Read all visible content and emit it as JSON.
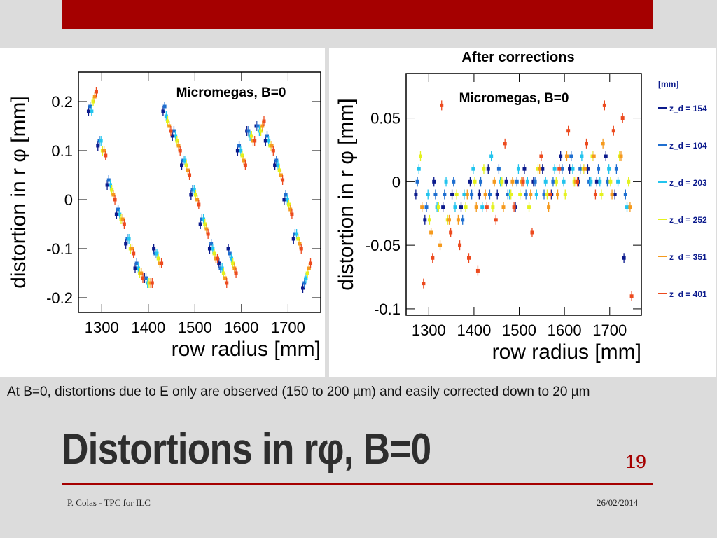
{
  "slide": {
    "title": "Distortions in rφ, B=0",
    "number": "19",
    "caption": "At B=0, distortions due to E only are observed (150 to 200 µm) and easily corrected down to 20 µm",
    "footer_left": "P. Colas - TPC for ILC",
    "footer_right": "26/02/2014",
    "accent_color": "#a50000"
  },
  "chart_data": [
    {
      "type": "scatter",
      "title": "",
      "annotation": "Micromegas, B=0",
      "xlabel": "row radius [mm]",
      "ylabel": "distortion in r φ [mm]",
      "xlim": [
        1250,
        1770
      ],
      "ylim": [
        -0.23,
        0.26
      ],
      "xticks": [
        1300,
        1400,
        1500,
        1600,
        1700
      ],
      "yticks": [
        0.2,
        0.1,
        0,
        -0.1,
        -0.2
      ],
      "ytick_labels": [
        "0.2",
        "0.1",
        "0",
        "-0.1",
        "-0.2"
      ],
      "error_bars": true,
      "series": [
        {
          "name": "z_d = 154",
          "color": "#0b1a8c",
          "x": [
            1280,
            1300,
            1320,
            1340,
            1360,
            1380,
            1400,
            1420,
            1440,
            1460,
            1480,
            1500,
            1520,
            1540,
            1560,
            1580,
            1600,
            1620,
            1640,
            1660,
            1680,
            1700,
            1720,
            1740
          ],
          "y": [
            0.18,
            0.11,
            0.03,
            -0.03,
            -0.09,
            -0.14,
            -0.16,
            -0.1,
            0.18,
            0.13,
            0.07,
            0.01,
            -0.05,
            -0.1,
            -0.13,
            -0.1,
            0.1,
            0.14,
            0.15,
            0.12,
            0.07,
            0.0,
            -0.08,
            -0.18
          ]
        },
        {
          "name": "z_d = 104",
          "color": "#1f6fd0",
          "x": [
            1280,
            1300,
            1320,
            1340,
            1360,
            1380,
            1400,
            1420,
            1440,
            1460,
            1480,
            1500,
            1520,
            1540,
            1560,
            1580,
            1600,
            1620,
            1640,
            1660,
            1680,
            1700,
            1720,
            1740
          ],
          "y": [
            0.19,
            0.12,
            0.04,
            -0.02,
            -0.08,
            -0.13,
            -0.16,
            -0.11,
            0.19,
            0.14,
            0.08,
            0.02,
            -0.04,
            -0.09,
            -0.14,
            -0.11,
            0.11,
            0.14,
            0.15,
            0.13,
            0.08,
            0.01,
            -0.07,
            -0.17
          ]
        },
        {
          "name": "z_d = 203",
          "color": "#22c4ee",
          "x": [
            1280,
            1300,
            1320,
            1340,
            1360,
            1380,
            1400,
            1420,
            1440,
            1460,
            1480,
            1500,
            1520,
            1540,
            1560,
            1580,
            1600,
            1620,
            1640,
            1660,
            1680,
            1700,
            1720,
            1740
          ],
          "y": [
            0.18,
            0.12,
            0.03,
            -0.03,
            -0.08,
            -0.14,
            -0.17,
            -0.11,
            0.17,
            0.13,
            0.08,
            0.02,
            -0.04,
            -0.1,
            -0.14,
            -0.12,
            0.1,
            0.13,
            0.14,
            0.12,
            0.07,
            0.0,
            -0.07,
            -0.16
          ]
        },
        {
          "name": "z_d = 252",
          "color": "#e4f21e",
          "x": [
            1280,
            1300,
            1320,
            1340,
            1360,
            1380,
            1400,
            1420,
            1440,
            1460,
            1480,
            1500,
            1520,
            1540,
            1560,
            1580,
            1600,
            1620,
            1640,
            1660,
            1680,
            1700,
            1720,
            1740
          ],
          "y": [
            0.2,
            0.1,
            0.02,
            -0.04,
            -0.1,
            -0.15,
            -0.17,
            -0.12,
            0.16,
            0.12,
            0.07,
            0.01,
            -0.05,
            -0.11,
            -0.15,
            -0.13,
            0.09,
            0.13,
            0.14,
            0.11,
            0.06,
            -0.01,
            -0.08,
            -0.15
          ]
        },
        {
          "name": "z_d = 351",
          "color": "#f59a1e",
          "x": [
            1280,
            1300,
            1320,
            1340,
            1360,
            1380,
            1400,
            1420,
            1440,
            1460,
            1480,
            1500,
            1520,
            1540,
            1560,
            1580,
            1600,
            1620,
            1640,
            1660,
            1680,
            1700,
            1720,
            1740
          ],
          "y": [
            0.21,
            0.1,
            0.01,
            -0.04,
            -0.1,
            -0.15,
            -0.17,
            -0.13,
            0.15,
            0.11,
            0.06,
            0.0,
            -0.06,
            -0.12,
            -0.16,
            -0.14,
            0.08,
            0.12,
            0.15,
            0.11,
            0.05,
            -0.02,
            -0.09,
            -0.14
          ]
        },
        {
          "name": "z_d = 401",
          "color": "#ec4a1e",
          "x": [
            1280,
            1300,
            1320,
            1340,
            1360,
            1380,
            1400,
            1420,
            1440,
            1460,
            1480,
            1500,
            1520,
            1540,
            1560,
            1580,
            1600,
            1620,
            1640,
            1660,
            1680,
            1700,
            1720,
            1740
          ],
          "y": [
            0.22,
            0.09,
            0.0,
            -0.05,
            -0.11,
            -0.16,
            -0.17,
            -0.13,
            0.14,
            0.1,
            0.05,
            -0.01,
            -0.07,
            -0.12,
            -0.17,
            -0.15,
            0.07,
            0.12,
            0.16,
            0.1,
            0.04,
            -0.03,
            -0.1,
            -0.13
          ]
        }
      ]
    },
    {
      "type": "scatter",
      "title": "After corrections",
      "annotation": "Micromegas, B=0",
      "xlabel": "row radius [mm]",
      "ylabel": "distortion in r φ [mm]",
      "xlim": [
        1250,
        1770
      ],
      "ylim": [
        -0.105,
        0.085
      ],
      "xticks": [
        1300,
        1400,
        1500,
        1600,
        1700
      ],
      "yticks": [
        0.05,
        0,
        -0.05,
        -0.1
      ],
      "ytick_labels": [
        "0.05",
        "0",
        "-0.05",
        "-0.1"
      ],
      "error_bars": true,
      "legend_position": "right",
      "legend_header": "[mm]",
      "series": [
        {
          "name": "z_d = 154",
          "color": "#0b1a8c",
          "x": [
            1280,
            1300,
            1320,
            1340,
            1360,
            1380,
            1400,
            1420,
            1440,
            1460,
            1480,
            1500,
            1520,
            1540,
            1560,
            1580,
            1600,
            1620,
            1640,
            1660,
            1680,
            1700,
            1720,
            1740
          ],
          "y": [
            -0.01,
            -0.03,
            0.0,
            -0.02,
            -0.01,
            -0.02,
            0.0,
            -0.01,
            0.01,
            -0.01,
            0.0,
            -0.02,
            0.01,
            0.0,
            0.01,
            -0.01,
            0.02,
            0.01,
            0.0,
            0.01,
            0.0,
            0.02,
            -0.01,
            -0.06
          ]
        },
        {
          "name": "z_d = 104",
          "color": "#1f6fd0",
          "x": [
            1280,
            1300,
            1320,
            1340,
            1360,
            1380,
            1400,
            1420,
            1440,
            1460,
            1480,
            1500,
            1520,
            1540,
            1560,
            1580,
            1600,
            1620,
            1640,
            1660,
            1680,
            1700,
            1720,
            1740
          ],
          "y": [
            0.0,
            -0.02,
            -0.01,
            -0.01,
            0.0,
            -0.03,
            -0.01,
            0.0,
            -0.01,
            0.01,
            -0.01,
            0.0,
            -0.01,
            0.0,
            -0.01,
            0.0,
            0.01,
            0.02,
            0.01,
            0.0,
            0.01,
            0.0,
            0.01,
            -0.01
          ]
        },
        {
          "name": "z_d = 203",
          "color": "#22c4ee",
          "x": [
            1280,
            1300,
            1320,
            1340,
            1360,
            1380,
            1400,
            1420,
            1440,
            1460,
            1480,
            1500,
            1520,
            1540,
            1560,
            1580,
            1600,
            1620,
            1640,
            1660,
            1680,
            1700,
            1720,
            1740
          ],
          "y": [
            0.01,
            -0.01,
            -0.02,
            0.0,
            -0.02,
            -0.01,
            0.01,
            -0.02,
            0.02,
            0.0,
            -0.01,
            0.01,
            0.0,
            -0.01,
            0.0,
            0.01,
            0.0,
            0.01,
            0.02,
            0.0,
            0.0,
            0.01,
            0.0,
            -0.02
          ]
        },
        {
          "name": "z_d = 252",
          "color": "#e4f21e",
          "x": [
            1280,
            1300,
            1320,
            1340,
            1360,
            1380,
            1400,
            1420,
            1440,
            1460,
            1480,
            1500,
            1520,
            1540,
            1560,
            1580,
            1600,
            1620,
            1640,
            1660,
            1680,
            1700,
            1720,
            1740
          ],
          "y": [
            0.02,
            -0.03,
            -0.02,
            -0.03,
            -0.01,
            -0.02,
            0.0,
            0.01,
            -0.02,
            0.0,
            -0.01,
            -0.01,
            -0.02,
            0.01,
            -0.01,
            0.0,
            -0.01,
            0.0,
            0.01,
            0.02,
            -0.01,
            0.0,
            0.02,
            0.0
          ]
        },
        {
          "name": "z_d = 351",
          "color": "#f59a1e",
          "x": [
            1280,
            1300,
            1320,
            1340,
            1360,
            1380,
            1400,
            1420,
            1440,
            1460,
            1480,
            1500,
            1520,
            1540,
            1560,
            1580,
            1600,
            1620,
            1640,
            1660,
            1680,
            1700,
            1720,
            1740
          ],
          "y": [
            -0.02,
            -0.04,
            -0.05,
            -0.03,
            -0.03,
            -0.01,
            -0.02,
            -0.01,
            0.0,
            -0.02,
            0.0,
            0.0,
            -0.01,
            0.01,
            -0.02,
            -0.01,
            0.02,
            0.0,
            0.01,
            0.02,
            0.03,
            -0.01,
            0.02,
            -0.02
          ]
        },
        {
          "name": "z_d = 401",
          "color": "#ec4a1e",
          "x": [
            1280,
            1300,
            1320,
            1340,
            1360,
            1380,
            1400,
            1420,
            1440,
            1460,
            1480,
            1500,
            1520,
            1540,
            1560,
            1580,
            1600,
            1620,
            1640,
            1660,
            1680,
            1700,
            1720,
            1740
          ],
          "y": [
            -0.08,
            -0.06,
            0.06,
            -0.04,
            -0.05,
            -0.06,
            -0.07,
            -0.02,
            -0.03,
            0.03,
            -0.02,
            0.0,
            -0.04,
            0.02,
            -0.01,
            0.01,
            0.04,
            0.0,
            0.03,
            -0.01,
            0.06,
            0.04,
            0.05,
            -0.09
          ]
        }
      ]
    }
  ]
}
